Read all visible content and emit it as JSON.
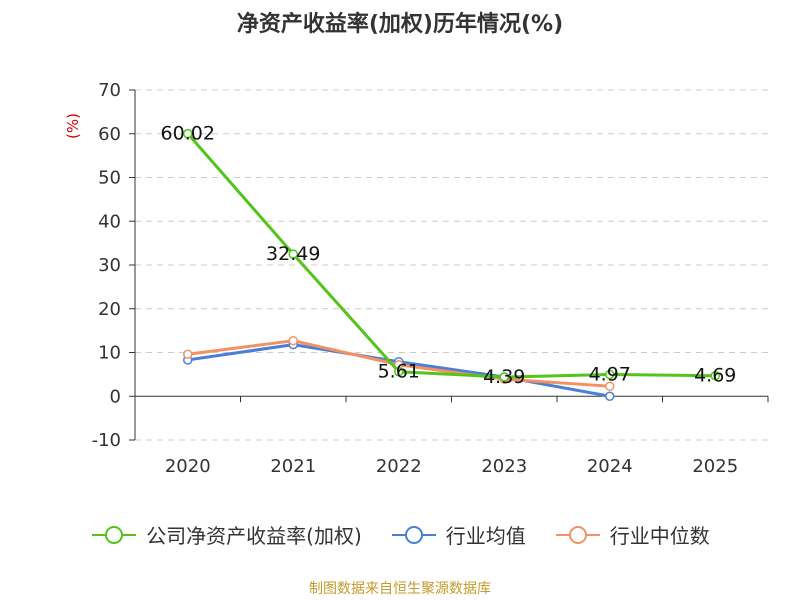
{
  "chart_data": {
    "type": "line",
    "title": "净资产收益率(加权)历年情况(%)",
    "ylabel": "(%)",
    "xlabel": "",
    "categories": [
      "2020",
      "2021",
      "2022",
      "2023",
      "2024",
      "2025"
    ],
    "ylim": [
      -10,
      70
    ],
    "yticks": [
      "70",
      "60",
      "50",
      "40",
      "30",
      "20",
      "10",
      "0",
      "-10"
    ],
    "grid": "horizontal-dashed",
    "series": [
      {
        "name": "公司净资产收益率(加权)",
        "color": "#52c41a",
        "values": [
          60.02,
          32.49,
          5.61,
          4.39,
          4.97,
          4.69
        ],
        "labels": [
          "60.02",
          "32.49",
          "5.61",
          "4.39",
          "4.97",
          "4.69"
        ]
      },
      {
        "name": "行业均值",
        "color": "#4a7fd6",
        "values": [
          8.3,
          11.8,
          7.9,
          4.4,
          0.0,
          null
        ]
      },
      {
        "name": "行业中位数",
        "color": "#f39163",
        "values": [
          9.6,
          12.7,
          7.2,
          3.9,
          2.3,
          null
        ]
      }
    ],
    "legend_position": "bottom",
    "source": "制图数据来自恒生聚源数据库"
  }
}
